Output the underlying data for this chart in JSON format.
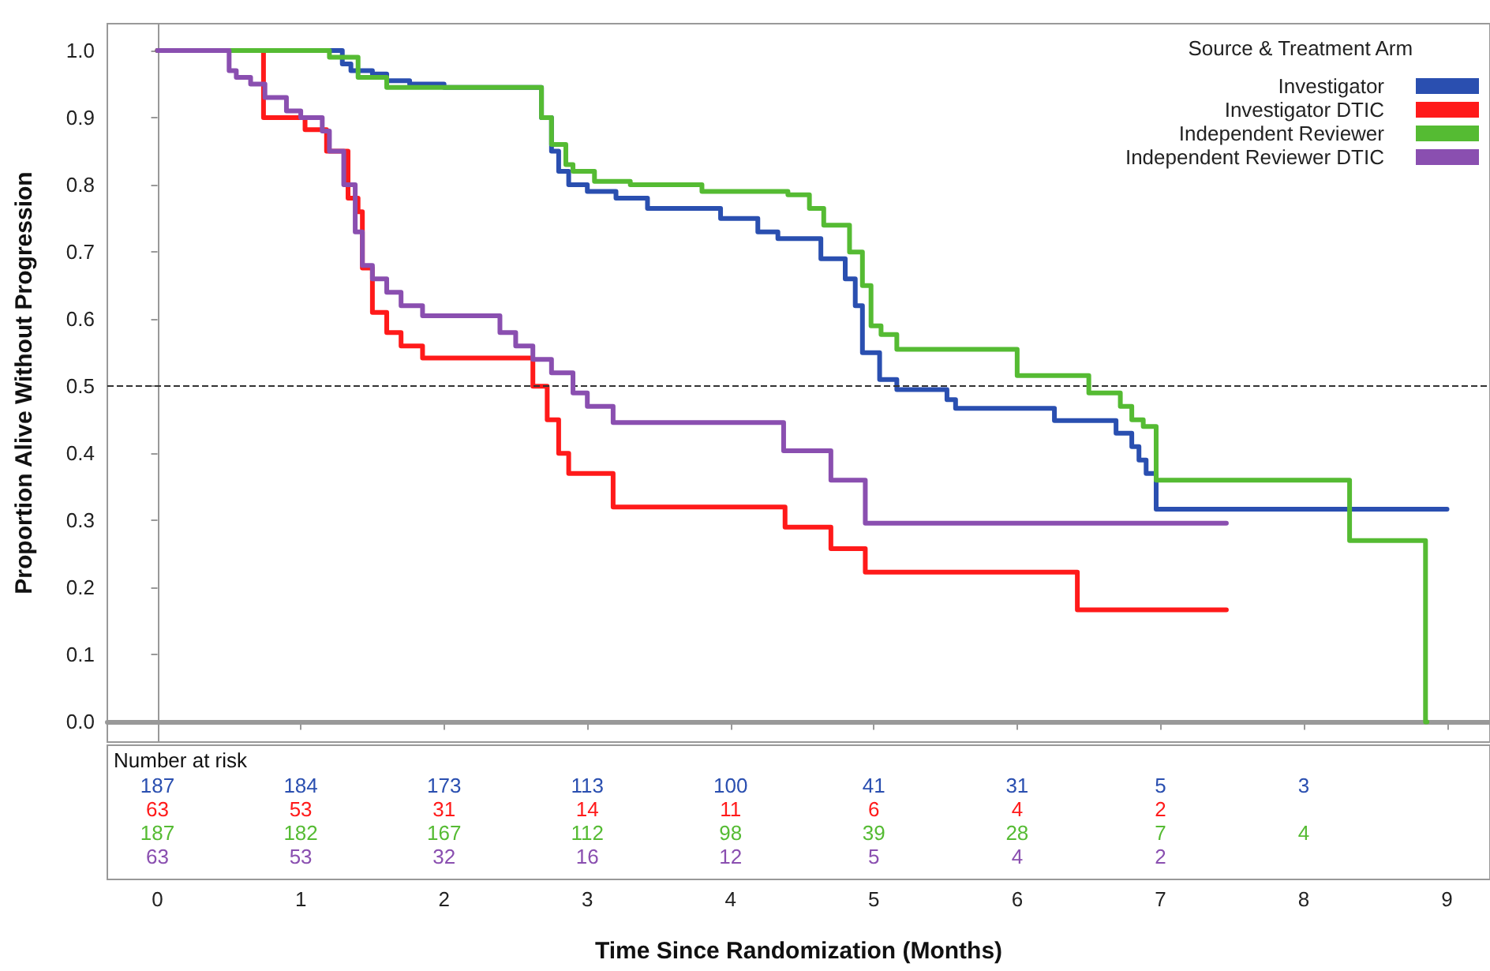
{
  "chart_data": {
    "type": "step",
    "xlabel": "Time Since Randomization (Months)",
    "ylabel": "Proportion Alive Without Progression",
    "legend_title": "Source & Treatment Arm",
    "legend": "top right",
    "grid": false,
    "marker": "none",
    "line_style": "solid",
    "xlim": [
      -0.35,
      9.3
    ],
    "xticks": [
      0,
      1,
      2,
      3,
      4,
      5,
      6,
      7,
      8,
      9
    ],
    "ylim": [
      -0.03,
      1.04
    ],
    "yticks": [
      {
        "value": 0,
        "label": "0.0"
      },
      0.1,
      0.2,
      0.3,
      0.4,
      0.5,
      0.6,
      0.7,
      0.8,
      0.9,
      {
        "value": 1,
        "label": "1.0"
      }
    ],
    "ref_lines": [
      {
        "axis": "y",
        "value": 0.5,
        "line_style": "dashed",
        "color": "#333333"
      }
    ],
    "annotations": [
      "Number at risk",
      "187 184 173 113 100 41 31 5 3",
      "63 53 31 14 11 6 4 2",
      "187 182 167 112 98 39 28 7 4",
      "63 53 32 16 12 5 4 2"
    ],
    "series": [
      {
        "name": "Investigator",
        "color": "#2a4fb0",
        "x": [
          0,
          1.29,
          1.35,
          1.5,
          1.6,
          1.76,
          2.0,
          2.68,
          2.75,
          2.8,
          2.87,
          3.0,
          3.2,
          3.42,
          3.93,
          4.19,
          4.33,
          4.63,
          4.8,
          4.87,
          4.92,
          5.04,
          5.16,
          5.51,
          5.57,
          6.26,
          6.69,
          6.8,
          6.85,
          6.9,
          6.97,
          9.0
        ],
        "values": [
          1.0,
          0.98,
          0.97,
          0.965,
          0.955,
          0.95,
          0.945,
          0.9,
          0.85,
          0.82,
          0.8,
          0.79,
          0.78,
          0.765,
          0.75,
          0.73,
          0.72,
          0.69,
          0.66,
          0.62,
          0.55,
          0.51,
          0.495,
          0.48,
          0.467,
          0.449,
          0.43,
          0.41,
          0.39,
          0.37,
          0.317,
          0.317
        ]
      },
      {
        "name": "Investigator DTIC",
        "color": "#ff1a1a",
        "x": [
          0,
          0.74,
          1.03,
          1.18,
          1.33,
          1.4,
          1.43,
          1.5,
          1.6,
          1.7,
          1.85,
          2.62,
          2.72,
          2.8,
          2.87,
          2.94,
          3.18,
          4.38,
          4.7,
          4.94,
          6.42,
          7.46
        ],
        "values": [
          1.0,
          0.9,
          0.882,
          0.85,
          0.78,
          0.76,
          0.676,
          0.61,
          0.58,
          0.56,
          0.542,
          0.5,
          0.45,
          0.4,
          0.37,
          0.37,
          0.32,
          0.29,
          0.258,
          0.223,
          0.167,
          0.167
        ]
      },
      {
        "name": "Independent Reviewer",
        "color": "#55bb33",
        "x": [
          0,
          1.2,
          1.4,
          1.6,
          2.68,
          2.75,
          2.85,
          2.9,
          3.05,
          3.3,
          3.8,
          4.4,
          4.55,
          4.65,
          4.83,
          4.92,
          4.98,
          5.05,
          5.16,
          6.0,
          6.5,
          6.72,
          6.8,
          6.88,
          6.97,
          8.32,
          8.85,
          8.86
        ],
        "values": [
          1.0,
          0.99,
          0.96,
          0.945,
          0.9,
          0.86,
          0.83,
          0.82,
          0.805,
          0.8,
          0.79,
          0.785,
          0.765,
          0.74,
          0.7,
          0.65,
          0.59,
          0.577,
          0.555,
          0.516,
          0.49,
          0.47,
          0.45,
          0.44,
          0.36,
          0.27,
          0.0,
          0.0
        ]
      },
      {
        "name": "Independent Reviewer DTIC",
        "color": "#8a4fb0",
        "x": [
          0,
          0.5,
          0.55,
          0.65,
          0.75,
          0.9,
          1.0,
          1.15,
          1.2,
          1.3,
          1.38,
          1.43,
          1.5,
          1.6,
          1.7,
          1.85,
          2.39,
          2.5,
          2.62,
          2.75,
          2.9,
          3.0,
          3.18,
          4.37,
          4.7,
          4.94,
          7.46
        ],
        "values": [
          1.0,
          0.97,
          0.96,
          0.95,
          0.93,
          0.91,
          0.9,
          0.88,
          0.85,
          0.8,
          0.73,
          0.68,
          0.66,
          0.64,
          0.62,
          0.605,
          0.58,
          0.56,
          0.54,
          0.52,
          0.49,
          0.47,
          0.446,
          0.404,
          0.36,
          0.296,
          0.296
        ]
      }
    ]
  }
}
